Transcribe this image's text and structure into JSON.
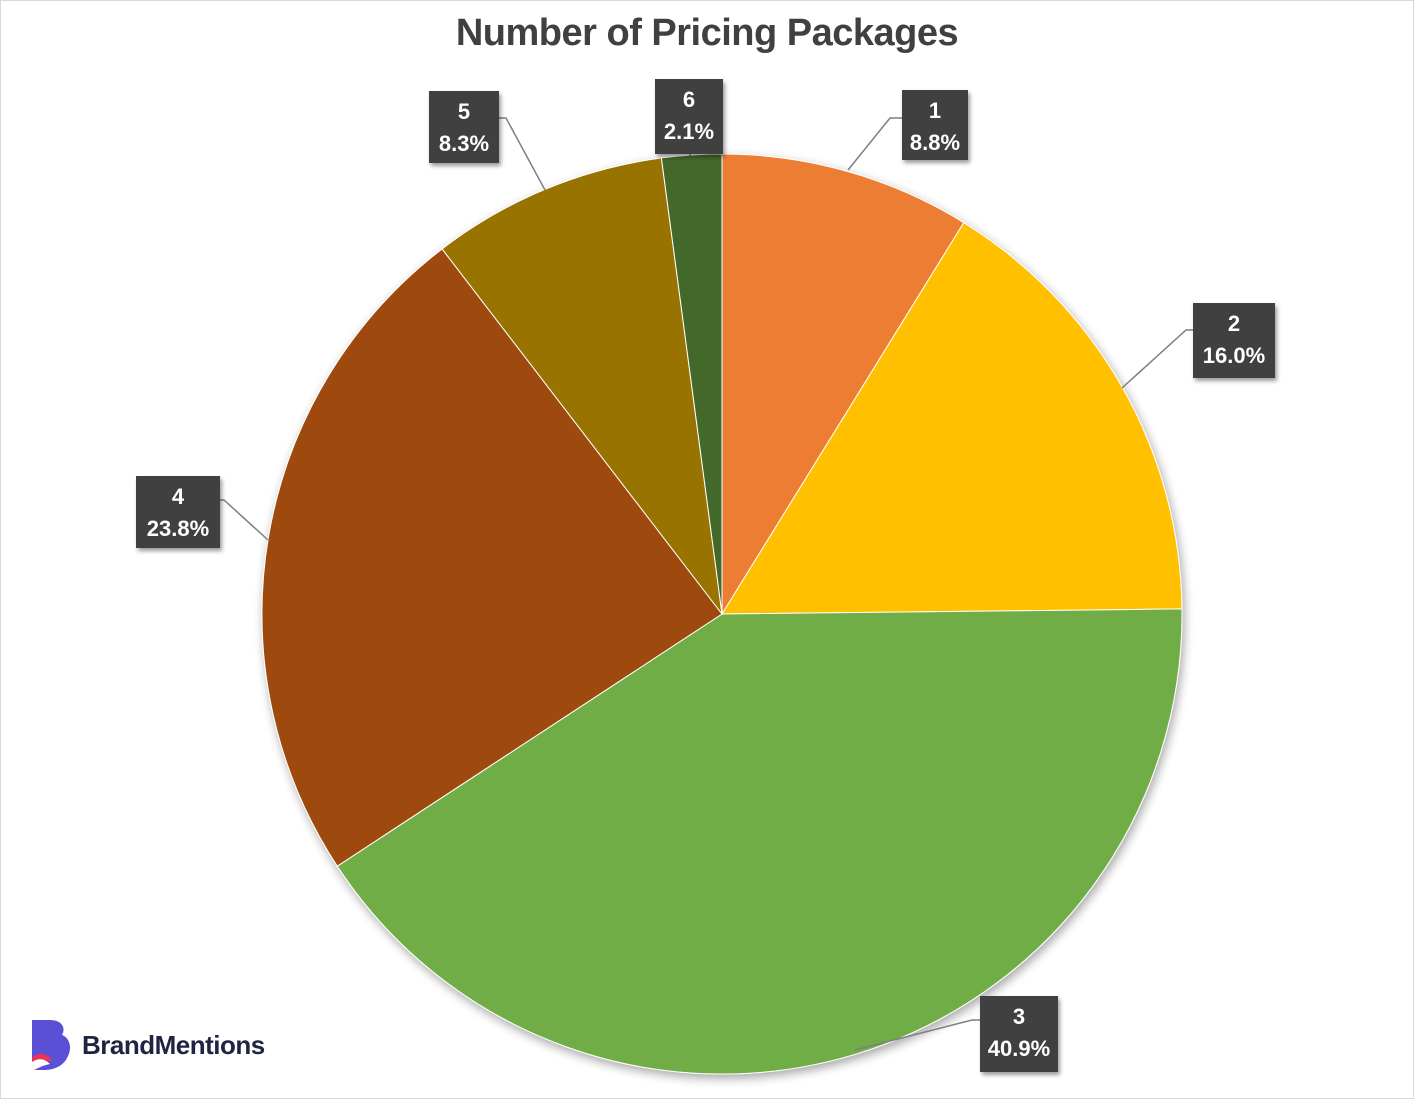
{
  "chart_data": {
    "type": "pie",
    "title": "Number of Pricing Packages",
    "categories": [
      "1",
      "2",
      "3",
      "4",
      "5",
      "6"
    ],
    "values": [
      8.8,
      16.0,
      40.9,
      23.8,
      8.3,
      2.1
    ],
    "value_labels": [
      "8.8%",
      "16.0%",
      "40.9%",
      "23.8%",
      "8.3%",
      "2.1%"
    ],
    "colors": [
      "#ed7d31",
      "#ffc000",
      "#70ad47",
      "#9e480e",
      "#997300",
      "#43682b"
    ],
    "start_angle": "12 o'clock",
    "direction": "clockwise",
    "legend": "none"
  },
  "brand": {
    "name": "BrandMentions",
    "logo_icon": "brandmentions-logo-icon",
    "colors": {
      "primary": "#5b4fd6",
      "accent": "#e8345a"
    }
  }
}
